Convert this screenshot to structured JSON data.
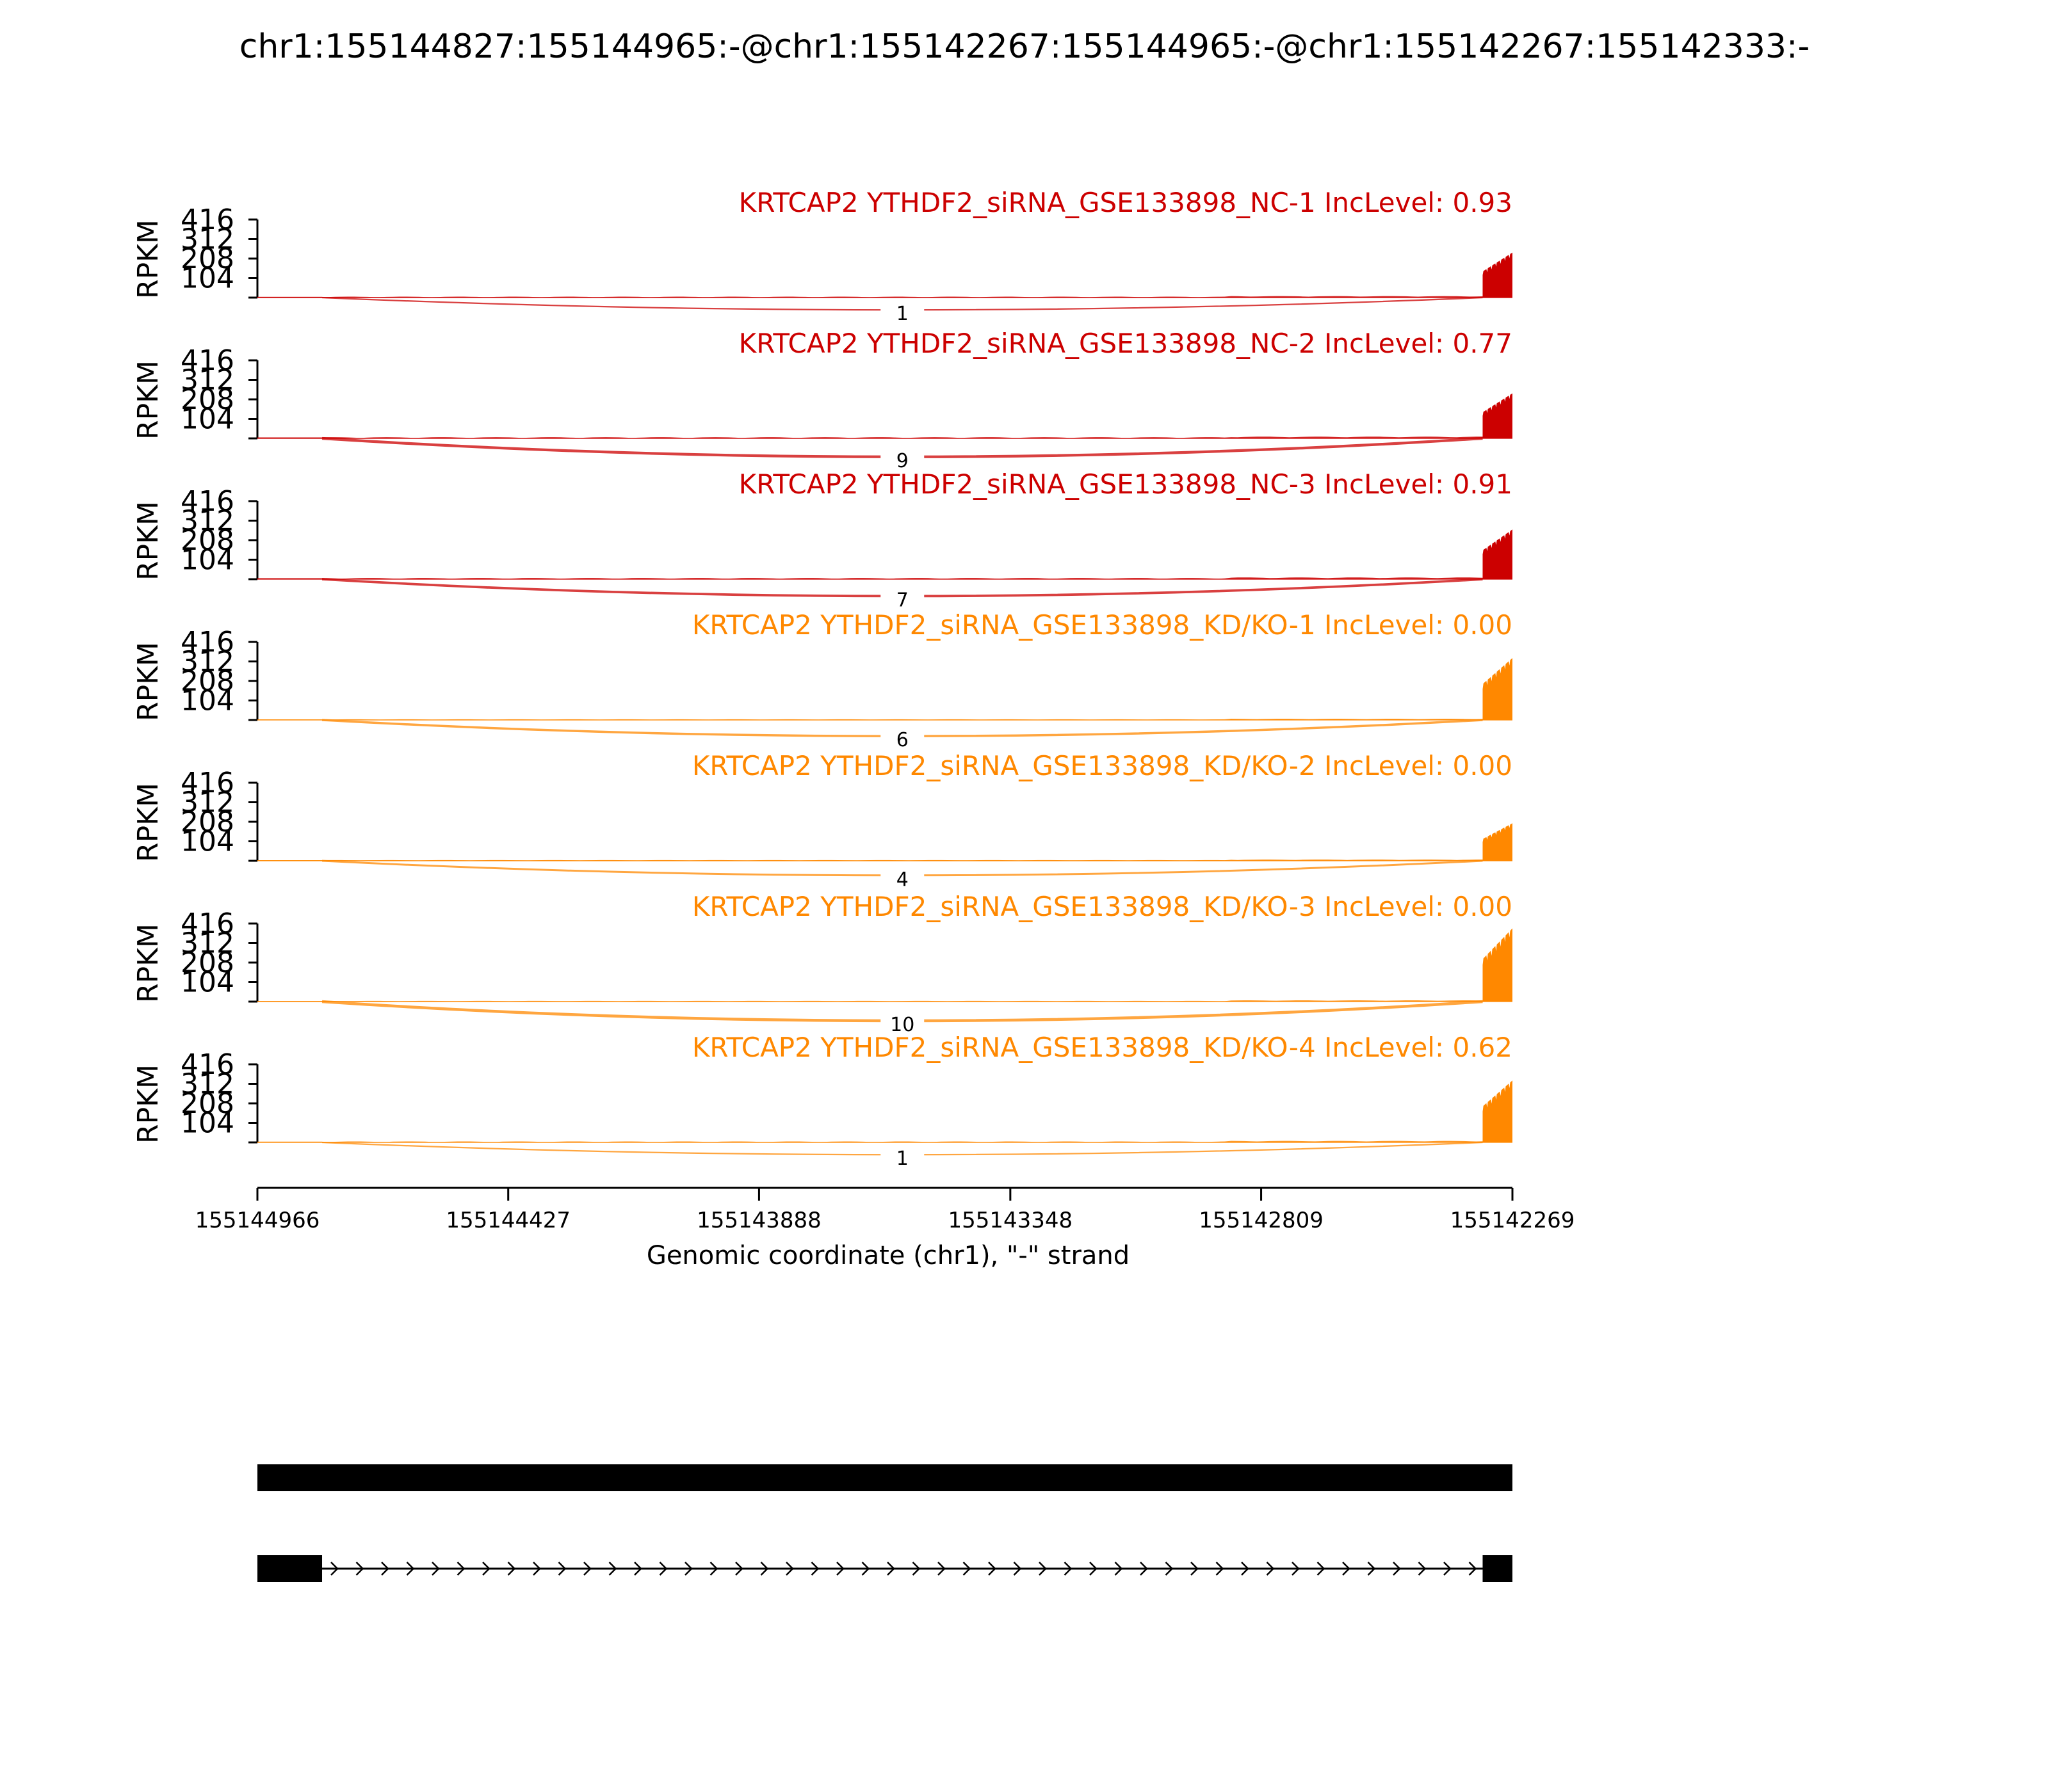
{
  "chart_data": {
    "type": "area",
    "title": "chr1:155144827:155144965:-@chr1:155142267:155144965:-@chr1:155142267:155142333:-",
    "xlabel": "Genomic coordinate (chr1), \"-\" strand",
    "ylabel": "RPKM",
    "x_range": [
      155144966,
      155142269
    ],
    "x_ticks": [
      "155144966",
      "155144427",
      "155143888",
      "155143348",
      "155142809",
      "155142269"
    ],
    "y_range": [
      0,
      416
    ],
    "y_ticks": [
      "104",
      "208",
      "312",
      "416"
    ],
    "colors": {
      "nc": "#cc0000",
      "kd": "#ff8800"
    },
    "exon_left": [
      155144966,
      155144827
    ],
    "exon_right": [
      155142333,
      155142269
    ],
    "series": [
      {
        "name": "KRTCAP2 YTHDF2_siRNA_GSE133898_NC-1 IncLevel: 0.93",
        "group": "nc",
        "junction_count": "1",
        "peak": 240,
        "intron_level": 4
      },
      {
        "name": "KRTCAP2 YTHDF2_siRNA_GSE133898_NC-2 IncLevel: 0.77",
        "group": "nc",
        "junction_count": "9",
        "peak": 240,
        "intron_level": 5
      },
      {
        "name": "KRTCAP2 YTHDF2_siRNA_GSE133898_NC-3 IncLevel: 0.91",
        "group": "nc",
        "junction_count": "7",
        "peak": 265,
        "intron_level": 5
      },
      {
        "name": "KRTCAP2 YTHDF2_siRNA_GSE133898_KD/KO-1 IncLevel: 0.00",
        "group": "kd",
        "junction_count": "6",
        "peak": 330,
        "intron_level": 3
      },
      {
        "name": "KRTCAP2 YTHDF2_siRNA_GSE133898_KD/KO-2 IncLevel: 0.00",
        "group": "kd",
        "junction_count": "4",
        "peak": 200,
        "intron_level": 3
      },
      {
        "name": "KRTCAP2 YTHDF2_siRNA_GSE133898_KD/KO-3 IncLevel: 0.00",
        "group": "kd",
        "junction_count": "10",
        "peak": 390,
        "intron_level": 3
      },
      {
        "name": "KRTCAP2 YTHDF2_siRNA_GSE133898_KD/KO-4 IncLevel: 0.62",
        "group": "kd",
        "junction_count": "1",
        "peak": 330,
        "intron_level": 4
      }
    ],
    "grid": false,
    "legend": "none"
  }
}
